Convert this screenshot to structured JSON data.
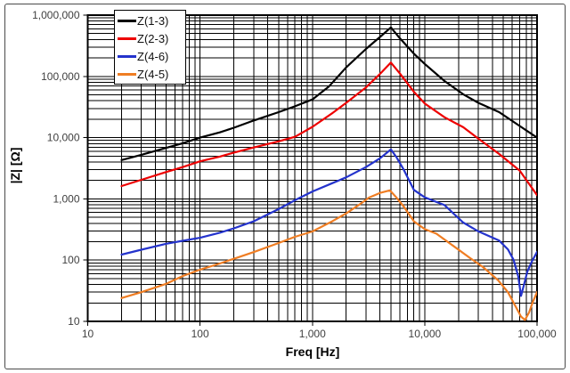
{
  "window": {
    "background": "#ffffff",
    "frame_border_color": "#4a4a4a"
  },
  "chart_data": {
    "type": "line",
    "title": "",
    "xlabel": "Freq [Hz]",
    "ylabel": "|Z| [Ω]",
    "x_scale": "log",
    "y_scale": "log",
    "xlim": [
      10,
      100000
    ],
    "ylim": [
      10,
      1000000
    ],
    "grid": "black major and minor log gridlines on both axes",
    "legend_position": "top-left inside plot area",
    "tick_text_color": "#3f3f3f",
    "x_tick_values": [
      10,
      100,
      1000,
      10000,
      100000
    ],
    "x_tick_labels": [
      "10",
      "100",
      "1,000",
      "10,000",
      "100,000"
    ],
    "y_tick_values": [
      10,
      100,
      1000,
      10000,
      100000,
      1000000
    ],
    "y_tick_labels": [
      "10",
      "100",
      "1,000",
      "10,000",
      "100,000",
      "1,000,000"
    ],
    "series": [
      {
        "name": "Z(1-3)",
        "color": "#000000",
        "points": [
          [
            20,
            4300
          ],
          [
            30,
            5250
          ],
          [
            50,
            6800
          ],
          [
            70,
            8100
          ],
          [
            100,
            10000
          ],
          [
            150,
            12200
          ],
          [
            200,
            14500
          ],
          [
            300,
            19000
          ],
          [
            500,
            26000
          ],
          [
            700,
            32500
          ],
          [
            1000,
            42000
          ],
          [
            1400,
            68000
          ],
          [
            2000,
            140000
          ],
          [
            3000,
            280000
          ],
          [
            4000,
            440000
          ],
          [
            5000,
            630000
          ],
          [
            6000,
            420000
          ],
          [
            8000,
            235000
          ],
          [
            10000,
            160000
          ],
          [
            15000,
            84000
          ],
          [
            22000,
            51000
          ],
          [
            30000,
            37000
          ],
          [
            46000,
            26000
          ],
          [
            70000,
            15500
          ],
          [
            100000,
            10000
          ]
        ]
      },
      {
        "name": "Z(2-3)",
        "color": "#ee0000",
        "points": [
          [
            20,
            1620
          ],
          [
            30,
            2050
          ],
          [
            50,
            2750
          ],
          [
            70,
            3300
          ],
          [
            100,
            4100
          ],
          [
            150,
            4900
          ],
          [
            200,
            5700
          ],
          [
            300,
            6900
          ],
          [
            500,
            8700
          ],
          [
            700,
            10300
          ],
          [
            1000,
            15000
          ],
          [
            1500,
            25000
          ],
          [
            2000,
            37000
          ],
          [
            3000,
            66000
          ],
          [
            4000,
            110000
          ],
          [
            5000,
            168000
          ],
          [
            6000,
            112000
          ],
          [
            8000,
            56000
          ],
          [
            10000,
            36000
          ],
          [
            15000,
            21500
          ],
          [
            22000,
            14800
          ],
          [
            30000,
            9600
          ],
          [
            46000,
            5400
          ],
          [
            70000,
            2900
          ],
          [
            100000,
            1150
          ]
        ]
      },
      {
        "name": "Z(4-6)",
        "color": "#2433cc",
        "points": [
          [
            20,
            123
          ],
          [
            30,
            148
          ],
          [
            50,
            185
          ],
          [
            70,
            207
          ],
          [
            100,
            232
          ],
          [
            150,
            280
          ],
          [
            200,
            330
          ],
          [
            300,
            430
          ],
          [
            500,
            680
          ],
          [
            700,
            950
          ],
          [
            1000,
            1320
          ],
          [
            1500,
            1800
          ],
          [
            2000,
            2250
          ],
          [
            3000,
            3300
          ],
          [
            4000,
            4600
          ],
          [
            5000,
            6400
          ],
          [
            5600,
            4800
          ],
          [
            6500,
            3000
          ],
          [
            8000,
            1400
          ],
          [
            10000,
            1060
          ],
          [
            15000,
            790
          ],
          [
            22000,
            410
          ],
          [
            30000,
            295
          ],
          [
            46000,
            208
          ],
          [
            55000,
            150
          ],
          [
            62000,
            100
          ],
          [
            68000,
            54
          ],
          [
            72000,
            26
          ],
          [
            76000,
            38
          ],
          [
            82000,
            65
          ],
          [
            90000,
            95
          ],
          [
            100000,
            136
          ]
        ]
      },
      {
        "name": "Z(4-5)",
        "color": "#ef7d23",
        "points": [
          [
            20,
            24
          ],
          [
            30,
            30
          ],
          [
            50,
            41
          ],
          [
            70,
            55
          ],
          [
            100,
            70
          ],
          [
            150,
            88
          ],
          [
            200,
            105
          ],
          [
            300,
            135
          ],
          [
            500,
            190
          ],
          [
            700,
            240
          ],
          [
            1000,
            294
          ],
          [
            1500,
            430
          ],
          [
            2000,
            580
          ],
          [
            2600,
            800
          ],
          [
            3200,
            1050
          ],
          [
            4000,
            1250
          ],
          [
            4900,
            1380
          ],
          [
            5600,
            1050
          ],
          [
            6500,
            750
          ],
          [
            8000,
            430
          ],
          [
            10000,
            320
          ],
          [
            12700,
            270
          ],
          [
            18000,
            170
          ],
          [
            25000,
            110
          ],
          [
            33000,
            77
          ],
          [
            45000,
            47
          ],
          [
            55000,
            30
          ],
          [
            65000,
            17
          ],
          [
            72000,
            12
          ],
          [
            78000,
            10.5
          ],
          [
            85000,
            14
          ],
          [
            92000,
            21
          ],
          [
            100000,
            30
          ]
        ]
      }
    ]
  }
}
